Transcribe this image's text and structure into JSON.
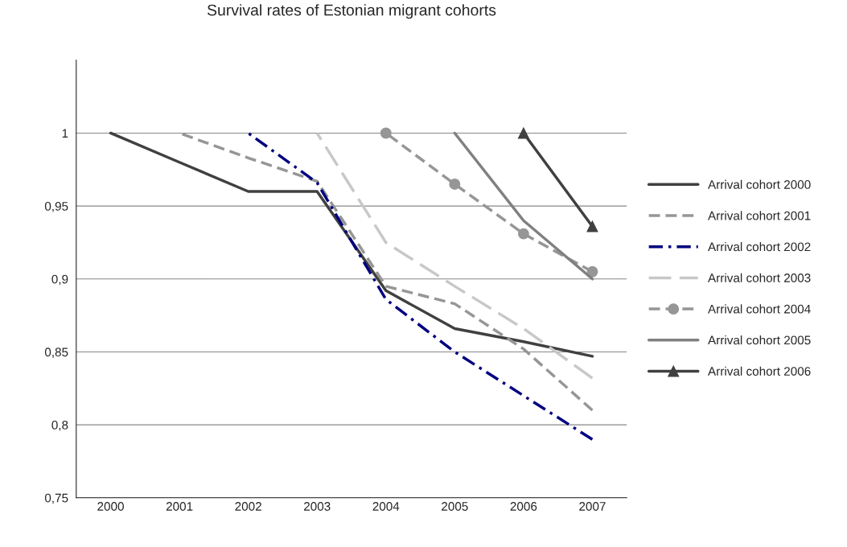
{
  "chart_data": {
    "type": "line",
    "title": "Survival rates of Estonian migrant cohorts",
    "categories": [
      "2000",
      "2001",
      "2002",
      "2003",
      "2004",
      "2005",
      "2006",
      "2007"
    ],
    "series": [
      {
        "name": "Arrival cohort 2000",
        "color": "#404040",
        "line_style": "solid",
        "marker": "none",
        "values": [
          1,
          0.98,
          0.96,
          0.96,
          0.892,
          0.866,
          0.857,
          0.847
        ]
      },
      {
        "name": "Arrival cohort 2001",
        "color": "#969696",
        "line_style": "dashed",
        "marker": "none",
        "values": [
          null,
          1,
          0.983,
          0.967,
          0.895,
          0.883,
          0.852,
          0.81
        ]
      },
      {
        "name": "Arrival cohort 2002",
        "color": "#000080",
        "line_style": "dashdot",
        "marker": "none",
        "values": [
          null,
          null,
          1,
          0.966,
          0.886,
          0.85,
          0.82,
          0.79
        ]
      },
      {
        "name": "Arrival cohort 2003",
        "color": "#c8c8c8",
        "line_style": "dashed",
        "marker": "none",
        "values": [
          null,
          null,
          null,
          1,
          0.925,
          0.895,
          0.866,
          0.832
        ]
      },
      {
        "name": "Arrival cohort 2004",
        "color": "#969696",
        "line_style": "dashed",
        "marker": "circle",
        "values": [
          null,
          null,
          null,
          null,
          1,
          0.965,
          0.931,
          0.905
        ]
      },
      {
        "name": "Arrival cohort 2005",
        "color": "#808080",
        "line_style": "solid",
        "marker": "none",
        "values": [
          null,
          null,
          null,
          null,
          null,
          1,
          0.94,
          0.9
        ]
      },
      {
        "name": "Arrival cohort 2006",
        "color": "#404040",
        "line_style": "solid",
        "marker": "triangle",
        "values": [
          null,
          null,
          null,
          null,
          null,
          null,
          1,
          0.936
        ]
      }
    ],
    "ylim": [
      0.75,
      1.05
    ],
    "yticks": [
      {
        "value": 0.75,
        "label": "0,75"
      },
      {
        "value": 0.8,
        "label": "0,8"
      },
      {
        "value": 0.85,
        "label": "0,85"
      },
      {
        "value": 0.9,
        "label": "0,9"
      },
      {
        "value": 0.95,
        "label": "0,95"
      },
      {
        "value": 1,
        "label": "1"
      }
    ],
    "grid": "y",
    "legend": "right"
  }
}
